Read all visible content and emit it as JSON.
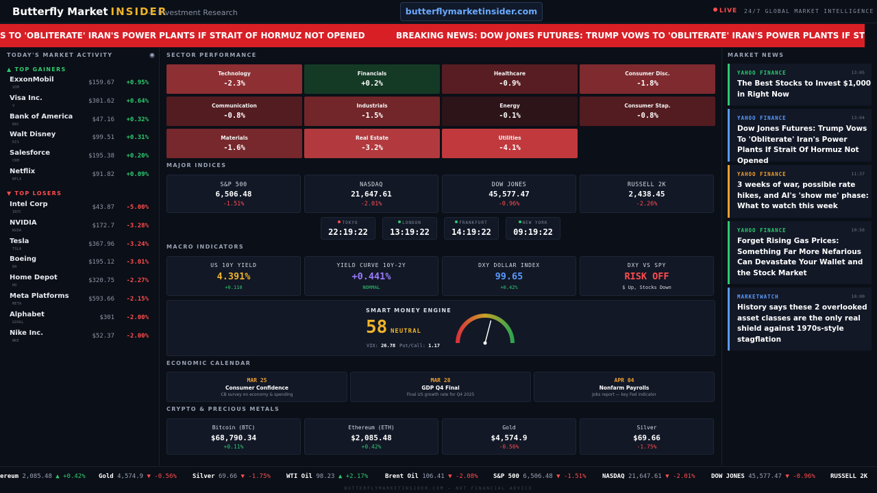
{
  "header": {
    "brand": "Butterfly Market",
    "brand_accent": "INSIDER",
    "subtitle": "— Investment Research",
    "url": "butterflymarketinsider.com",
    "live": "LIVE",
    "live_desc": "24/7 GLOBAL MARKET INTELLIGENCE"
  },
  "breaking": {
    "text_left": "S TO 'OBLITERATE' IRAN'S POWER PLANTS IF STRAIT OF HORMUZ NOT OPENED",
    "text_right": "BREAKING NEWS: DOW JONES FUTURES: TRUMP VOWS TO 'OBLITERATE' IRAN'S POWER PLANTS IF STRAIT OF HORI"
  },
  "market_activity": {
    "title": "TODAY'S MARKET ACTIVITY",
    "gainers_title": "▲ TOP GAINERS",
    "losers_title": "▼ TOP LOSERS",
    "gainers": [
      {
        "name": "ExxonMobil",
        "ticker": "XOM",
        "price": "$159.67",
        "change": "+0.95%"
      },
      {
        "name": "Visa Inc.",
        "ticker": "V",
        "price": "$301.62",
        "change": "+0.64%"
      },
      {
        "name": "Bank of America",
        "ticker": "BAC",
        "price": "$47.16",
        "change": "+0.32%"
      },
      {
        "name": "Walt Disney",
        "ticker": "DIS",
        "price": "$99.51",
        "change": "+0.31%"
      },
      {
        "name": "Salesforce",
        "ticker": "CRM",
        "price": "$195.38",
        "change": "+0.20%"
      },
      {
        "name": "Netflix",
        "ticker": "NFLX",
        "price": "$91.82",
        "change": "+0.09%"
      }
    ],
    "losers": [
      {
        "name": "Intel Corp",
        "ticker": "INTC",
        "price": "$43.87",
        "change": "-5.00%"
      },
      {
        "name": "NVIDIA",
        "ticker": "NVDA",
        "price": "$172.7",
        "change": "-3.28%"
      },
      {
        "name": "Tesla",
        "ticker": "TSLA",
        "price": "$367.96",
        "change": "-3.24%"
      },
      {
        "name": "Boeing",
        "ticker": "BA",
        "price": "$195.12",
        "change": "-3.01%"
      },
      {
        "name": "Home Depot",
        "ticker": "HD",
        "price": "$320.75",
        "change": "-2.27%"
      },
      {
        "name": "Meta Platforms",
        "ticker": "META",
        "price": "$593.66",
        "change": "-2.15%"
      },
      {
        "name": "Alphabet",
        "ticker": "GOOGL",
        "price": "$301",
        "change": "-2.00%"
      },
      {
        "name": "Nike Inc.",
        "ticker": "NKE",
        "price": "$52.37",
        "change": "-2.00%"
      }
    ]
  },
  "sectors": {
    "title": "SECTOR PERFORMANCE",
    "items": [
      {
        "name": "Technology",
        "value": "-2.3%",
        "color": "#8e2f33"
      },
      {
        "name": "Financials",
        "value": "+0.2%",
        "color": "#143a25"
      },
      {
        "name": "Healthcare",
        "value": "-0.9%",
        "color": "#571d22"
      },
      {
        "name": "Consumer Disc.",
        "value": "-1.8%",
        "color": "#7e2a2f"
      },
      {
        "name": "Communication",
        "value": "-0.8%",
        "color": "#531c21"
      },
      {
        "name": "Industrials",
        "value": "-1.5%",
        "color": "#722629"
      },
      {
        "name": "Energy",
        "value": "-0.1%",
        "color": "#2c1419"
      },
      {
        "name": "Consumer Stap.",
        "value": "-0.8%",
        "color": "#531c21"
      },
      {
        "name": "Materials",
        "value": "-1.6%",
        "color": "#76282c"
      },
      {
        "name": "Real Estate",
        "value": "-3.2%",
        "color": "#b23a3e"
      },
      {
        "name": "Utilities",
        "value": "-4.1%",
        "color": "#c1393d"
      }
    ]
  },
  "indices": {
    "title": "MAJOR INDICES",
    "items": [
      {
        "name": "S&P 500",
        "value": "6,506.48",
        "change": "-1.51%"
      },
      {
        "name": "NASDAQ",
        "value": "21,647.61",
        "change": "-2.01%"
      },
      {
        "name": "DOW JONES",
        "value": "45,577.47",
        "change": "-0.96%"
      },
      {
        "name": "RUSSELL 2K",
        "value": "2,438.45",
        "change": "-2.26%"
      }
    ]
  },
  "clocks": [
    {
      "city": "TOKYO",
      "time": "22:19:22",
      "dot": "#ff4d4f"
    },
    {
      "city": "LONDON",
      "time": "13:19:22",
      "dot": "#2ecc71"
    },
    {
      "city": "FRANKFURT",
      "time": "14:19:22",
      "dot": "#2ecc71"
    },
    {
      "city": "NEW YORK",
      "time": "09:19:22",
      "dot": "#2ecc71"
    }
  ],
  "macro": {
    "title": "MACRO INDICATORS",
    "items": [
      {
        "label": "US 10Y YIELD",
        "value": "4.391%",
        "sub": "+0.110",
        "value_color": "#f0b429",
        "sub_color": "#2ecc71"
      },
      {
        "label": "YIELD CURVE 10Y-2Y",
        "value": "+0.441%",
        "sub": "NORMAL",
        "value_color": "#9b7bff",
        "sub_color": "#2ecc71"
      },
      {
        "label": "DXY DOLLAR INDEX",
        "value": "99.65",
        "sub": "+0.42%",
        "value_color": "#5b9bff",
        "sub_color": "#2ecc71"
      },
      {
        "label": "DXY VS SPY",
        "value": "RISK OFF",
        "sub": "$ Up, Stocks Down",
        "value_color": "#ff4d4f",
        "sub_color": "#d8dce4"
      }
    ]
  },
  "smart_money": {
    "title": "SMART MONEY ENGINE",
    "score": "58",
    "state": "NEUTRAL",
    "score_fraction": 0.58,
    "vix_label": "VIX:",
    "vix": "26.78",
    "pc_label": "Put/Call:",
    "pc": "1.17"
  },
  "calendar": {
    "title": "ECONOMIC CALENDAR",
    "items": [
      {
        "date": "MAR 25",
        "title": "Consumer Confidence",
        "desc": "CB survey on economy & spending"
      },
      {
        "date": "MAR 28",
        "title": "GDP Q4 Final",
        "desc": "Final US growth rate for Q4 2025"
      },
      {
        "date": "APR 04",
        "title": "Nonfarm Payrolls",
        "desc": "Jobs report — key Fed indicator"
      }
    ]
  },
  "crypto": {
    "title": "CRYPTO & PRECIOUS METALS",
    "items": [
      {
        "name": "Bitcoin (BTC)",
        "value": "$68,790.34",
        "change": "+0.11%"
      },
      {
        "name": "Ethereum (ETH)",
        "value": "$2,085.48",
        "change": "+0.42%"
      },
      {
        "name": "Gold",
        "value": "$4,574.9",
        "change": "-0.56%"
      },
      {
        "name": "Silver",
        "value": "$69.66",
        "change": "-1.75%"
      }
    ]
  },
  "news": {
    "title": "MARKET NEWS",
    "items": [
      {
        "source": "YAHOO FINANCE",
        "time": "13:05",
        "headline": "The Best Stocks to Invest $1,000 in Right Now",
        "color": "#2ecc71"
      },
      {
        "source": "YAHOO FINANCE",
        "time": "13:04",
        "headline": "Dow Jones Futures: Trump Vows To 'Obliterate' Iran's Power Plants If Strait Of Hormuz Not Opened",
        "color": "#5b9bff"
      },
      {
        "source": "YAHOO FINANCE",
        "time": "11:37",
        "headline": "3 weeks of war, possible rate hikes, and AI's 'show me' phase: What to watch this week",
        "color": "#f0a030"
      },
      {
        "source": "YAHOO FINANCE",
        "time": "10:56",
        "headline": "Forget Rising Gas Prices: Something Far More Nefarious Can Devastate Your Wallet and the Stock Market",
        "color": "#2ecc71"
      },
      {
        "source": "MARKETWATCH",
        "time": "10:00",
        "headline": "History says these 2 overlooked asset classes are the only real shield against 1970s-style stagflation",
        "color": "#5b9bff"
      }
    ]
  },
  "bottom_ticker": [
    {
      "name": "ereum",
      "price": "2,085.48",
      "change": "▲ +0.42%",
      "dir": "up"
    },
    {
      "name": "Gold",
      "price": "4,574.9",
      "change": "▼ -0.56%",
      "dir": "dn"
    },
    {
      "name": "Silver",
      "price": "69.66",
      "change": "▼ -1.75%",
      "dir": "dn"
    },
    {
      "name": "WTI Oil",
      "price": "98.23",
      "change": "▲ +2.17%",
      "dir": "up"
    },
    {
      "name": "Brent Oil",
      "price": "106.41",
      "change": "▼ -2.08%",
      "dir": "dn"
    },
    {
      "name": "S&P 500",
      "price": "6,506.48",
      "change": "▼ -1.51%",
      "dir": "dn"
    },
    {
      "name": "NASDAQ",
      "price": "21,647.61",
      "change": "▼ -2.01%",
      "dir": "dn"
    },
    {
      "name": "DOW JONES",
      "price": "45,577.47",
      "change": "▼ -0.96%",
      "dir": "dn"
    },
    {
      "name": "RUSSELL 2K",
      "price": "",
      "change": "",
      "dir": "dn"
    }
  ],
  "footer": "BUTTERFLYMARKETINSIDER.COM — NOT FINANCIAL ADVICE"
}
